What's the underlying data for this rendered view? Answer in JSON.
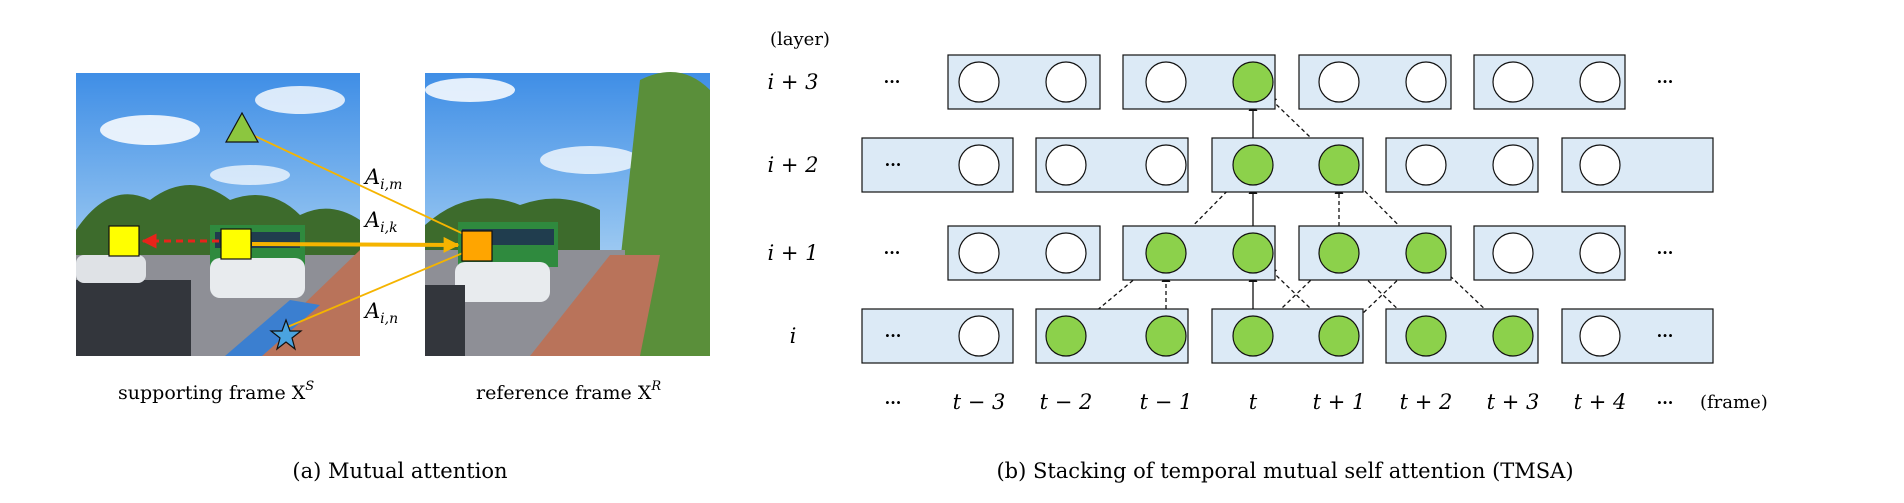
{
  "panel_a": {
    "support_label": "supporting frame X",
    "support_sup": "S",
    "ref_label": "reference frame X",
    "ref_sup": "R",
    "attn_m": "A",
    "attn_m_sub": "i,m",
    "attn_k": "A",
    "attn_k_sub": "i,k",
    "attn_n": "A",
    "attn_n_sub": "i,n",
    "caption": "(a) Mutual attention",
    "colors": {
      "triangle": "#8cc63f",
      "square_support": "#ffff00",
      "square_ref": "#ffa500",
      "star": "#4aa3df",
      "line": "#f5b400",
      "dashed_arrow": "#e8231a"
    }
  },
  "panel_b": {
    "layer_header": "(layer)",
    "frame_header": "(frame)",
    "ellipsis": "···",
    "layers": [
      {
        "label": "i + 3",
        "green": [
          false,
          false,
          false,
          true,
          false,
          false,
          false,
          false
        ]
      },
      {
        "label": "i + 2",
        "green": [
          false,
          false,
          false,
          true,
          true,
          false,
          false,
          false
        ]
      },
      {
        "label": "i + 1",
        "green": [
          false,
          false,
          true,
          true,
          true,
          true,
          false,
          false
        ]
      },
      {
        "label": "i",
        "green": [
          false,
          true,
          true,
          true,
          true,
          true,
          true,
          false
        ]
      }
    ],
    "frames": [
      "t − 3",
      "t − 2",
      "t − 1",
      "t",
      "t + 1",
      "t + 2",
      "t + 3",
      "t + 4"
    ],
    "caption": "(b) Stacking of temporal mutual self attention (TMSA)",
    "colors": {
      "box_fill": "#dceaf6",
      "node_green": "#8cd14b",
      "node_white": "#ffffff"
    }
  }
}
